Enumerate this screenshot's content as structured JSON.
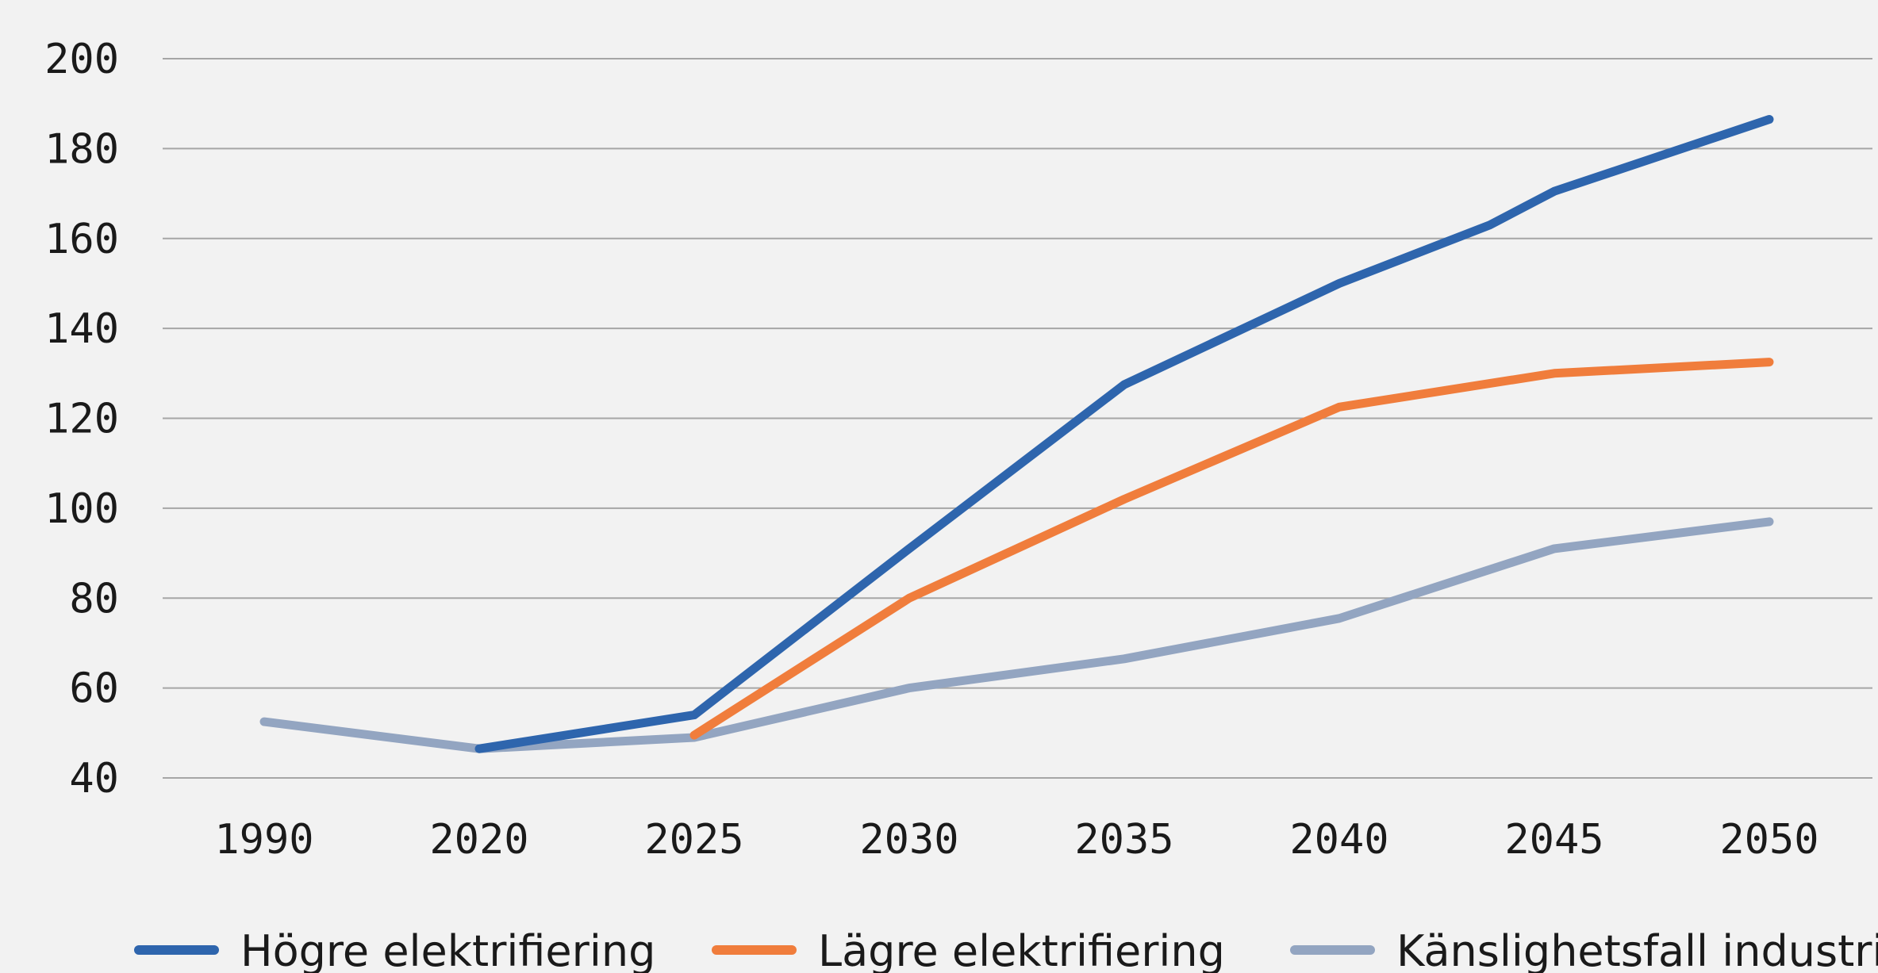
{
  "chart_data": {
    "type": "line",
    "categories": [
      "1990",
      "2020",
      "2025",
      "2030",
      "2035",
      "2040",
      "2045",
      "2050"
    ],
    "series": [
      {
        "name": "Högre elektrifiering",
        "color": "#2e65ad",
        "points": [
          [
            1,
            46.5
          ],
          [
            2,
            54
          ],
          [
            3,
            91
          ],
          [
            4,
            127.5
          ],
          [
            5,
            150
          ],
          [
            5.7,
            163
          ],
          [
            6,
            170.5
          ],
          [
            7,
            186.5
          ]
        ]
      },
      {
        "name": "Lägre elektrifiering",
        "color": "#f07d3c",
        "points": [
          [
            2,
            49.5
          ],
          [
            3,
            80
          ],
          [
            4,
            102
          ],
          [
            5,
            122.5
          ],
          [
            6,
            130
          ],
          [
            7,
            132.5
          ]
        ]
      },
      {
        "name": "Känslighetsfall industri",
        "color": "#93a5c1",
        "points": [
          [
            0,
            52.5
          ],
          [
            1,
            46.5
          ],
          [
            2,
            49
          ],
          [
            3,
            60
          ],
          [
            4,
            66.5
          ],
          [
            5,
            75.5
          ],
          [
            6,
            91
          ],
          [
            7,
            97
          ]
        ]
      }
    ],
    "yticks": [
      40,
      60,
      80,
      100,
      120,
      140,
      160,
      180,
      200
    ],
    "ylim": [
      40,
      200
    ],
    "grid": true,
    "legend": "bottom"
  }
}
